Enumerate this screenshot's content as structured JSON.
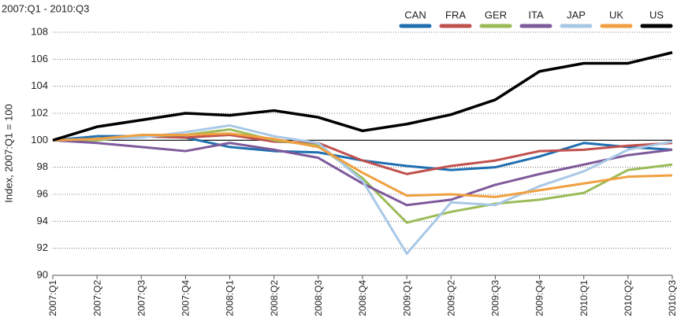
{
  "chart_data": {
    "type": "line",
    "subtitle": "2007:Q1 - 2010:Q3",
    "y_label": "Index, 2007:Q1 = 100",
    "categories": [
      "2007:Q1",
      "2007:Q2",
      "2007:Q3",
      "2007:Q4",
      "2008:Q1",
      "2008:Q2",
      "2008:Q3",
      "2008:Q4",
      "2009:Q1",
      "2009:Q2",
      "2009:Q3",
      "2009:Q4",
      "2010:Q1",
      "2010:Q2",
      "2010:Q3"
    ],
    "series": [
      {
        "name": "CAN",
        "color": "#1f6fb0",
        "values": [
          100,
          100.3,
          100.3,
          100.2,
          99.5,
          99.2,
          99.1,
          98.5,
          98.1,
          97.8,
          98.0,
          98.8,
          99.8,
          99.5,
          99.3
        ]
      },
      {
        "name": "FRA",
        "color": "#c0504d",
        "values": [
          100,
          100.1,
          100.3,
          100.2,
          100.4,
          99.9,
          99.8,
          98.5,
          97.5,
          98.1,
          98.5,
          99.2,
          99.3,
          99.6,
          99.8
        ]
      },
      {
        "name": "GER",
        "color": "#9bbb59",
        "values": [
          100,
          100.0,
          100.3,
          100.4,
          100.8,
          100.0,
          99.6,
          97.2,
          93.9,
          94.7,
          95.3,
          95.6,
          96.1,
          97.8,
          98.2
        ]
      },
      {
        "name": "ITA",
        "color": "#7e5a9b",
        "values": [
          100,
          99.8,
          99.5,
          99.2,
          99.8,
          99.3,
          98.7,
          96.8,
          95.2,
          95.6,
          96.7,
          97.5,
          98.2,
          98.9,
          99.3
        ]
      },
      {
        "name": "JAP",
        "color": "#a9c8e6",
        "values": [
          100,
          100.1,
          100.2,
          100.6,
          101.1,
          100.3,
          99.8,
          97.0,
          91.6,
          95.4,
          95.2,
          96.6,
          97.7,
          99.3,
          99.9
        ]
      },
      {
        "name": "UK",
        "color": "#f0a040",
        "values": [
          100,
          100.1,
          100.4,
          100.4,
          100.5,
          100.1,
          99.5,
          97.6,
          95.9,
          96.0,
          95.8,
          96.3,
          96.8,
          97.3,
          97.4
        ]
      },
      {
        "name": "US",
        "color": "#000000",
        "values": [
          100,
          101.0,
          101.5,
          102.0,
          101.85,
          102.2,
          101.7,
          100.7,
          101.2,
          101.9,
          103.0,
          105.1,
          105.7,
          105.7,
          106.5
        ]
      }
    ],
    "ylim": [
      90,
      108
    ],
    "yticks": [
      90,
      92,
      94,
      96,
      98,
      100,
      102,
      104,
      106,
      108
    ],
    "reference_line": 100,
    "grid": true,
    "legend": "top-right"
  }
}
